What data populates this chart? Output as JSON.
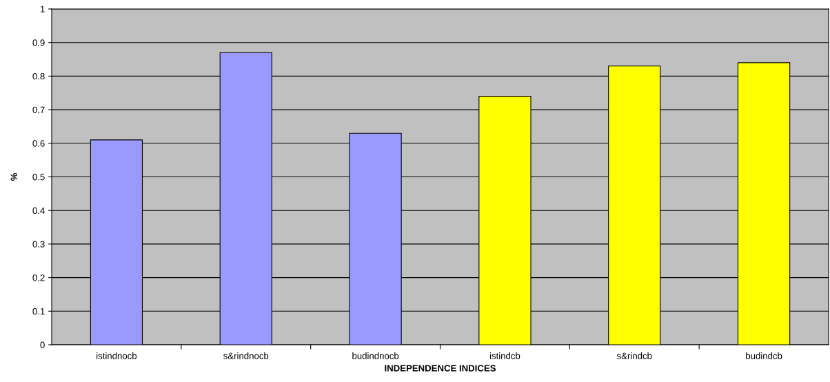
{
  "chart_data": {
    "type": "bar",
    "xlabel": "INDEPENDENCE INDICES",
    "ylabel": "%",
    "categories": [
      "istindnocb",
      "s&rindnocb",
      "budindnocb",
      "istindcb",
      "s&rindcb",
      "budindcb"
    ],
    "values": [
      0.61,
      0.87,
      0.63,
      0.74,
      0.83,
      0.84
    ],
    "colors": [
      "#9999ff",
      "#9999ff",
      "#9999ff",
      "#ffff00",
      "#ffff00",
      "#ffff00"
    ],
    "ylim": [
      0,
      1
    ],
    "yticks": [
      0,
      0.1,
      0.2,
      0.3,
      0.4,
      0.5,
      0.6,
      0.7,
      0.8,
      0.9,
      1
    ],
    "grid": "y",
    "legend": false
  }
}
